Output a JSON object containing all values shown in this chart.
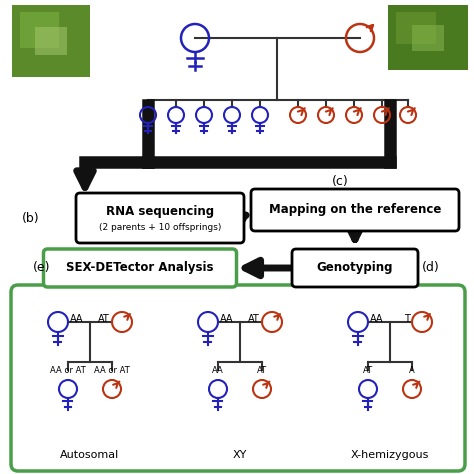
{
  "female_color": "#2222bb",
  "male_color": "#bb3311",
  "line_color": "#333333",
  "arrow_color": "#111111",
  "green_border": "#4a9e4a",
  "bg_color": "#ffffff",
  "label_b": "(b)",
  "label_c": "(c)",
  "label_d": "(d)",
  "label_e": "(e)",
  "rna_seq_line1": "RNA sequencing",
  "rna_seq_line2": "(2 parents + 10 offsprings)",
  "mapping_text": "Mapping on the reference",
  "genotyping_text": "Genotyping",
  "sex_detector_text": "SEX-DETector Analysis",
  "autosomal_label": "Autosomal",
  "xy_label": "XY",
  "x_hemi_label": "X-hemizygous",
  "auto_parent_f": "AA",
  "auto_parent_m": "AT",
  "auto_child_f_label": "AA or AT",
  "auto_child_m_label": "AA or AT",
  "xy_parent_f": "AA",
  "xy_parent_m": "AT",
  "xy_child_f_label": "AA",
  "xy_child_m_label": "AT",
  "xhemi_parent_f": "AA",
  "xhemi_parent_m": "T",
  "xhemi_child_f_label": "AT",
  "xhemi_child_m_label": "A",
  "fig_width": 4.74,
  "fig_height": 4.74,
  "dpi": 100
}
